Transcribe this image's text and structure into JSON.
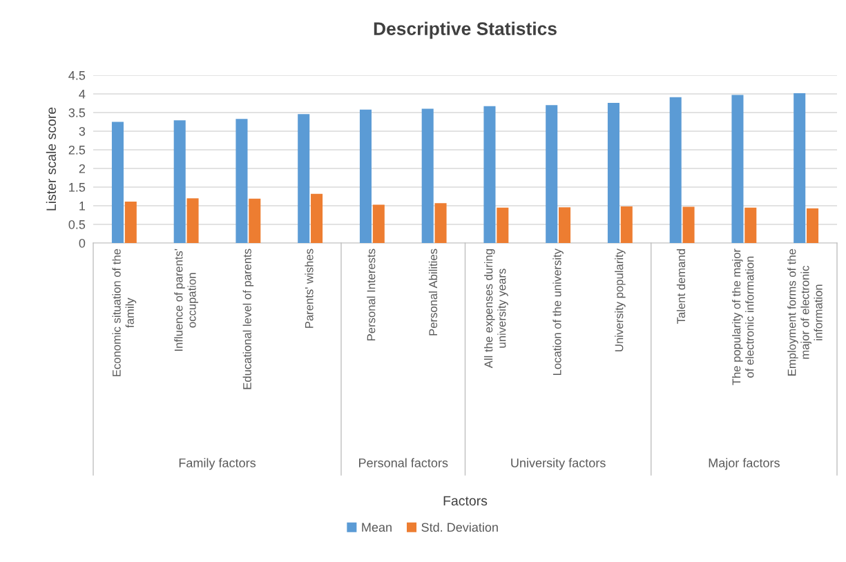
{
  "chart_data": {
    "type": "bar",
    "title": "Descriptive Statistics",
    "ylabel": "Lister scale score",
    "categories": [
      "Economic situation of the\nfamily",
      "Influence of parents'\noccupation",
      "Educational level of parents",
      "Parents' wishes",
      "Personal Interests",
      "Personal Abilities",
      "All the expenses during\nuniversity years",
      "Location of the university",
      "University popularity",
      "Talent demand",
      "The popularity of the major\nof electronic information",
      "Employment forms of the\nmajor of electronic\ninformation"
    ],
    "series": [
      {
        "name": "Mean",
        "color": "#5b9bd5",
        "values": [
          3.25,
          3.29,
          3.33,
          3.46,
          3.58,
          3.6,
          3.67,
          3.7,
          3.76,
          3.91,
          3.97,
          4.02
        ]
      },
      {
        "name": "Std. Deviation",
        "color": "#ed7d31",
        "values": [
          1.11,
          1.2,
          1.19,
          1.32,
          1.03,
          1.07,
          0.95,
          0.96,
          0.98,
          0.97,
          0.95,
          0.93
        ]
      }
    ],
    "annotations": [
      "Family factors",
      "Personal factors",
      "University factors",
      "Major factors",
      "Factors"
    ],
    "ylim": [
      0,
      4.5
    ],
    "yticks": [
      0,
      0.5,
      1,
      1.5,
      2,
      2.5,
      3,
      3.5,
      4,
      4.5
    ],
    "grid": "y",
    "legend": "bottom"
  }
}
